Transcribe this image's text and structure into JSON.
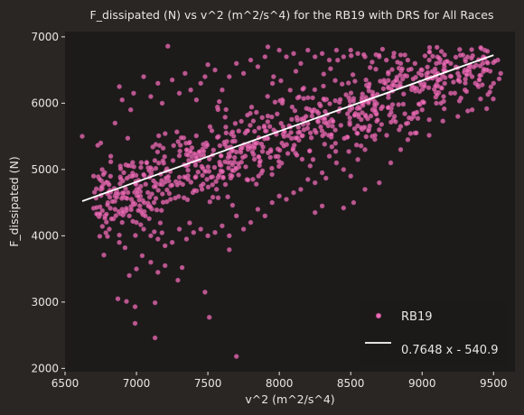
{
  "chart_data": {
    "type": "scatter",
    "title": "F_dissipated (N) vs v^2 (m^2/s^4) for the RB19 with DRS for All Races",
    "xlabel": "v^2 (m^2/s^4)",
    "ylabel": "F_dissipated (N)",
    "xlim": [
      6500,
      9650
    ],
    "ylim": [
      1950,
      7080
    ],
    "xticks": [
      "6500",
      "7000",
      "7500",
      "8000",
      "8500",
      "9000",
      "9500"
    ],
    "yticks": [
      "2000",
      "3000",
      "4000",
      "5000",
      "6000",
      "7000"
    ],
    "grid": false,
    "legend_position": "lower-right",
    "colors": {
      "background": "#2a2624",
      "plot_area": "#1c1b1a",
      "points": "#ef6fb6",
      "point_edge": "#b24a8a",
      "fit_line": "#ffffff",
      "text": "#e8e6e3"
    },
    "series": [
      {
        "name": "RB19",
        "kind": "points",
        "points": [
          [
            6620,
            5500
          ],
          [
            6870,
            3050
          ],
          [
            6930,
            3010
          ],
          [
            6990,
            2680
          ],
          [
            6990,
            2930
          ],
          [
            7130,
            2460
          ],
          [
            7130,
            2990
          ],
          [
            7290,
            3330
          ],
          [
            7320,
            3520
          ],
          [
            7480,
            3150
          ],
          [
            7510,
            2770
          ],
          [
            7700,
            2180
          ],
          [
            7650,
            3790
          ],
          [
            6950,
            3400
          ],
          [
            7000,
            3500
          ],
          [
            7100,
            3600
          ],
          [
            6750,
            4700
          ],
          [
            6800,
            4500
          ],
          [
            6850,
            4400
          ],
          [
            6900,
            4200
          ],
          [
            6780,
            4300
          ],
          [
            6820,
            5200
          ],
          [
            6700,
            4900
          ],
          [
            6760,
            5000
          ],
          [
            6810,
            4100
          ],
          [
            6880,
            3900
          ],
          [
            6920,
            3820
          ],
          [
            7040,
            3700
          ],
          [
            7150,
            3450
          ],
          [
            7200,
            3550
          ],
          [
            6750,
            5400
          ],
          [
            6850,
            5700
          ],
          [
            6880,
            6250
          ],
          [
            6900,
            6050
          ],
          [
            6960,
            5900
          ],
          [
            6980,
            6150
          ],
          [
            7050,
            6400
          ],
          [
            7100,
            6100
          ],
          [
            7150,
            6300
          ],
          [
            7220,
            6860
          ],
          [
            7180,
            6000
          ],
          [
            7250,
            6350
          ],
          [
            7300,
            6150
          ],
          [
            7340,
            6450
          ],
          [
            7380,
            6200
          ],
          [
            7420,
            6050
          ],
          [
            7450,
            6300
          ],
          [
            7480,
            6400
          ],
          [
            7500,
            6580
          ],
          [
            7550,
            6500
          ],
          [
            7600,
            6200
          ],
          [
            7650,
            6400
          ],
          [
            7700,
            6600
          ],
          [
            7750,
            6450
          ],
          [
            7800,
            6650
          ],
          [
            7850,
            6550
          ],
          [
            7900,
            6700
          ],
          [
            7920,
            6850
          ],
          [
            7960,
            6400
          ],
          [
            8000,
            6800
          ],
          [
            8050,
            6700
          ],
          [
            8100,
            6750
          ],
          [
            8150,
            6600
          ],
          [
            8200,
            6800
          ],
          [
            8250,
            6700
          ],
          [
            8300,
            6750
          ],
          [
            8350,
            6650
          ],
          [
            8400,
            6800
          ],
          [
            8450,
            6700
          ],
          [
            8500,
            6800
          ],
          [
            8550,
            6750
          ],
          [
            8600,
            6700
          ],
          [
            8650,
            6620
          ],
          [
            8700,
            6700
          ],
          [
            8750,
            6650
          ],
          [
            8800,
            6700
          ],
          [
            8850,
            6600
          ],
          [
            8900,
            6650
          ],
          [
            8950,
            6600
          ],
          [
            9000,
            6500
          ],
          [
            9050,
            6650
          ],
          [
            9100,
            6600
          ],
          [
            9150,
            6500
          ],
          [
            9200,
            6600
          ],
          [
            9250,
            6450
          ],
          [
            9300,
            6500
          ],
          [
            9350,
            6400
          ],
          [
            9400,
            6350
          ],
          [
            9450,
            6500
          ],
          [
            9500,
            6300
          ],
          [
            9550,
            6450
          ],
          [
            9200,
            6150
          ],
          [
            9100,
            6000
          ],
          [
            9150,
            6100
          ],
          [
            9300,
            6200
          ],
          [
            9350,
            5900
          ],
          [
            9250,
            5800
          ],
          [
            9050,
            5750
          ],
          [
            9000,
            5900
          ],
          [
            8950,
            5850
          ],
          [
            8900,
            5700
          ],
          [
            8850,
            5650
          ],
          [
            8800,
            5750
          ],
          [
            8700,
            5600
          ],
          [
            8650,
            5500
          ],
          [
            8600,
            5300
          ],
          [
            8550,
            5150
          ],
          [
            8500,
            4900
          ],
          [
            8450,
            5000
          ],
          [
            8400,
            5100
          ],
          [
            8350,
            5200
          ],
          [
            8300,
            4950
          ],
          [
            8250,
            4800
          ],
          [
            8200,
            4850
          ],
          [
            8150,
            4700
          ],
          [
            8100,
            4650
          ],
          [
            8050,
            4550
          ],
          [
            8000,
            4600
          ],
          [
            7950,
            4500
          ],
          [
            7900,
            4300
          ],
          [
            7850,
            4400
          ],
          [
            7800,
            4200
          ],
          [
            7750,
            4100
          ],
          [
            7700,
            4300
          ],
          [
            7650,
            4000
          ],
          [
            7600,
            4150
          ],
          [
            7550,
            4050
          ],
          [
            7500,
            4000
          ],
          [
            7450,
            4100
          ],
          [
            7400,
            4050
          ],
          [
            7350,
            3950
          ],
          [
            7300,
            4100
          ],
          [
            7250,
            3900
          ],
          [
            7200,
            3850
          ],
          [
            7150,
            3950
          ],
          [
            7100,
            4000
          ],
          [
            7050,
            4100
          ],
          [
            7000,
            4200
          ],
          [
            6950,
            4300
          ],
          [
            6900,
            4400
          ],
          [
            6850,
            4600
          ],
          [
            6800,
            4800
          ],
          [
            8520,
            4500
          ],
          [
            8250,
            4350
          ],
          [
            8450,
            4420
          ],
          [
            8300,
            4450
          ],
          [
            8600,
            4700
          ],
          [
            8700,
            4800
          ],
          [
            8780,
            5100
          ],
          [
            8850,
            5300
          ],
          [
            8900,
            5450
          ],
          [
            8950,
            5550
          ]
        ]
      },
      {
        "name": "0.7648 x - 540.9",
        "kind": "line",
        "slope": 0.7648,
        "intercept": -540.9,
        "x_range": [
          6620,
          9500
        ]
      }
    ]
  }
}
